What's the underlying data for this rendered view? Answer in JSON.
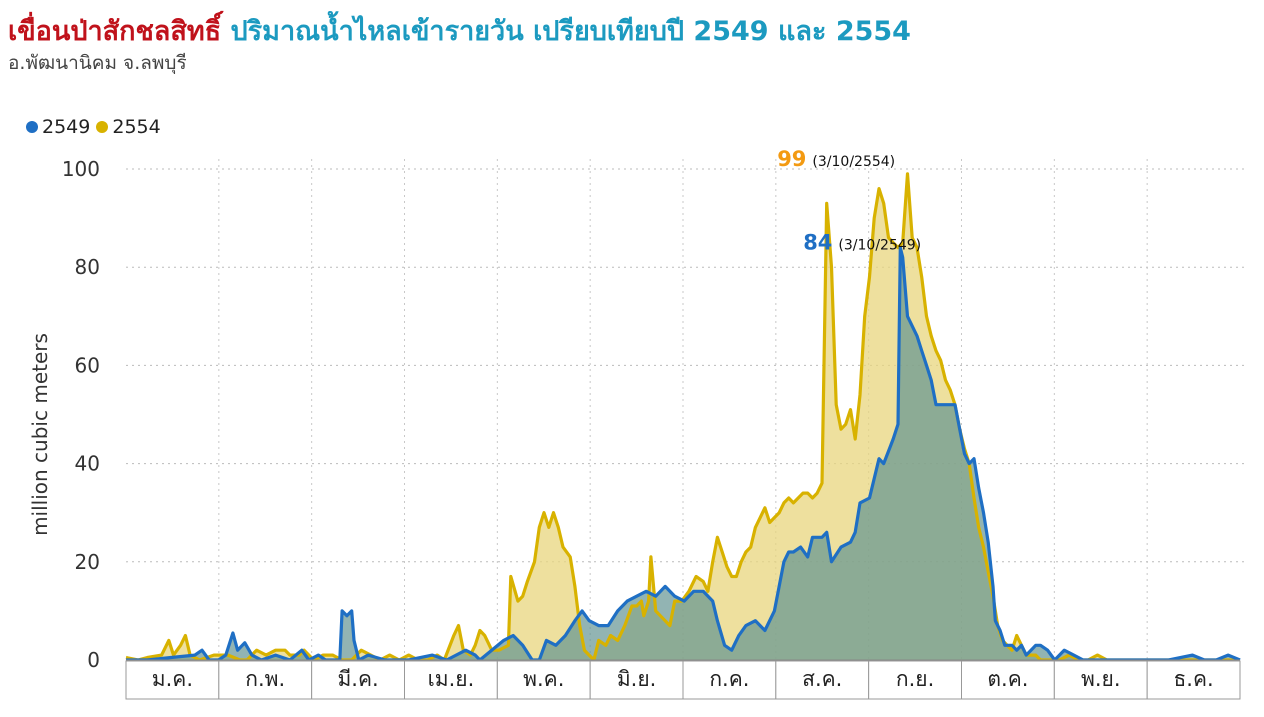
{
  "header": {
    "title_main": "เขื่อนป่าสักชลสิทธิ์",
    "title_rest": "ปริมาณน้ำไหลเข้ารายวัน เปรียบเทียบปี 2549 และ 2554",
    "subtitle": "อ.พัฒนานิคม จ.ลพบุรี"
  },
  "colors": {
    "s2549": "#1f6fc4",
    "s2554": "#d8b200",
    "title_red": "#c0121b",
    "title_blue": "#1c9ac0"
  },
  "chart_data": {
    "type": "area",
    "ylabel": "million cubic meters",
    "ylim": [
      0,
      100
    ],
    "yticks": [
      0,
      20,
      40,
      60,
      80,
      100
    ],
    "categories": [
      "ม.ค.",
      "ก.พ.",
      "มี.ค.",
      "เม.ย.",
      "พ.ค.",
      "มิ.ย.",
      "ก.ค.",
      "ส.ค.",
      "ก.ย.",
      "ต.ค.",
      "พ.ย.",
      "ธ.ค."
    ],
    "x_unit": "day of year",
    "legend_position": "top-left",
    "grid": true,
    "annotations": [
      {
        "series": "2554",
        "value": "99",
        "date": "(3/10/2554)",
        "x": 276,
        "y": 99
      },
      {
        "series": "2549",
        "value": "84",
        "date": "(3/10/2549)",
        "x": 276,
        "y": 84
      }
    ],
    "series": [
      {
        "name": "2549",
        "points": [
          [
            1,
            0
          ],
          [
            10,
            0
          ],
          [
            20,
            0.5
          ],
          [
            30,
            1
          ],
          [
            33,
            2
          ],
          [
            36,
            0
          ],
          [
            40,
            0
          ],
          [
            43,
            1
          ],
          [
            46,
            5.5
          ],
          [
            48,
            2
          ],
          [
            51,
            3.5
          ],
          [
            54,
            1
          ],
          [
            58,
            0
          ],
          [
            64,
            1
          ],
          [
            70,
            0
          ],
          [
            75,
            2
          ],
          [
            78,
            0
          ],
          [
            82,
            1
          ],
          [
            85,
            0
          ],
          [
            88,
            0
          ],
          [
            91,
            0
          ],
          [
            92,
            10
          ],
          [
            94,
            9
          ],
          [
            96,
            10
          ],
          [
            97,
            4
          ],
          [
            99,
            0
          ],
          [
            103,
            1
          ],
          [
            110,
            0
          ],
          [
            120,
            0
          ],
          [
            130,
            1
          ],
          [
            136,
            0
          ],
          [
            144,
            2
          ],
          [
            148,
            1
          ],
          [
            150,
            0
          ],
          [
            160,
            4
          ],
          [
            164,
            5
          ],
          [
            168,
            3
          ],
          [
            172,
            0
          ],
          [
            175,
            0
          ],
          [
            178,
            4
          ],
          [
            182,
            3
          ],
          [
            186,
            5
          ],
          [
            190,
            8
          ],
          [
            193,
            10
          ],
          [
            196,
            8
          ],
          [
            200,
            7
          ],
          [
            204,
            7
          ],
          [
            208,
            10
          ],
          [
            212,
            12
          ],
          [
            216,
            13
          ],
          [
            220,
            14
          ],
          [
            224,
            13
          ],
          [
            228,
            15
          ],
          [
            232,
            13
          ],
          [
            236,
            12
          ],
          [
            240,
            14
          ],
          [
            244,
            14
          ],
          [
            248,
            12
          ],
          [
            250,
            8
          ],
          [
            253,
            3
          ],
          [
            256,
            2
          ],
          [
            259,
            5
          ],
          [
            262,
            7
          ],
          [
            266,
            8
          ],
          [
            270,
            6
          ],
          [
            274,
            10
          ],
          [
            278,
            20
          ],
          [
            280,
            22
          ],
          [
            282,
            22
          ],
          [
            285,
            23
          ],
          [
            288,
            21
          ],
          [
            290,
            25
          ],
          [
            294,
            25
          ],
          [
            296,
            26
          ],
          [
            298,
            20
          ],
          [
            302,
            23
          ],
          [
            306,
            24
          ],
          [
            308,
            26
          ],
          [
            310,
            32
          ],
          [
            314,
            33
          ],
          [
            318,
            41
          ],
          [
            320,
            40
          ],
          [
            324,
            45
          ],
          [
            326,
            48
          ],
          [
            327,
            84
          ],
          [
            328,
            82
          ],
          [
            330,
            70
          ],
          [
            334,
            66
          ],
          [
            336,
            63
          ],
          [
            338,
            60
          ],
          [
            340,
            57
          ],
          [
            342,
            52
          ],
          [
            346,
            52
          ],
          [
            350,
            52
          ],
          [
            352,
            47
          ],
          [
            354,
            42
          ],
          [
            356,
            40
          ],
          [
            358,
            41
          ],
          [
            360,
            35
          ],
          [
            362,
            30
          ],
          [
            364,
            24
          ],
          [
            366,
            15
          ],
          [
            367,
            8
          ],
          [
            369,
            6
          ],
          [
            371,
            3
          ],
          [
            374,
            3
          ],
          [
            376,
            2
          ],
          [
            378,
            3
          ],
          [
            380,
            1
          ],
          [
            382,
            2
          ],
          [
            384,
            3
          ],
          [
            386,
            3
          ],
          [
            389,
            2
          ],
          [
            392,
            0
          ],
          [
            396,
            2
          ],
          [
            400,
            1
          ],
          [
            404,
            0
          ],
          [
            410,
            0
          ],
          [
            420,
            0
          ],
          [
            430,
            0
          ],
          [
            440,
            0
          ],
          [
            450,
            1
          ],
          [
            455,
            0
          ],
          [
            460,
            0
          ],
          [
            465,
            1
          ],
          [
            470,
            0
          ]
        ]
      },
      {
        "name": "2554",
        "points": [
          [
            1,
            0.5
          ],
          [
            6,
            0
          ],
          [
            10,
            0.5
          ],
          [
            16,
            1
          ],
          [
            19,
            4
          ],
          [
            21,
            1
          ],
          [
            24,
            3
          ],
          [
            26,
            5
          ],
          [
            28,
            1
          ],
          [
            32,
            0
          ],
          [
            38,
            1
          ],
          [
            44,
            1
          ],
          [
            49,
            0
          ],
          [
            52,
            0
          ],
          [
            56,
            2
          ],
          [
            60,
            1
          ],
          [
            64,
            2
          ],
          [
            68,
            2
          ],
          [
            70,
            1
          ],
          [
            74,
            1
          ],
          [
            76,
            2
          ],
          [
            80,
            0
          ],
          [
            84,
            1
          ],
          [
            88,
            1
          ],
          [
            92,
            0
          ],
          [
            96,
            0
          ],
          [
            100,
            2
          ],
          [
            104,
            1
          ],
          [
            108,
            0
          ],
          [
            112,
            1
          ],
          [
            116,
            0
          ],
          [
            120,
            1
          ],
          [
            124,
            0
          ],
          [
            128,
            0
          ],
          [
            132,
            1
          ],
          [
            135,
            0
          ],
          [
            139,
            5
          ],
          [
            141,
            7
          ],
          [
            143,
            2
          ],
          [
            146,
            1
          ],
          [
            148,
            3
          ],
          [
            150,
            6
          ],
          [
            152,
            5
          ],
          [
            155,
            2
          ],
          [
            158,
            2
          ],
          [
            162,
            3
          ],
          [
            163,
            17
          ],
          [
            166,
            12
          ],
          [
            168,
            13
          ],
          [
            170,
            16
          ],
          [
            173,
            20
          ],
          [
            175,
            27
          ],
          [
            177,
            30
          ],
          [
            179,
            27
          ],
          [
            181,
            30
          ],
          [
            183,
            27
          ],
          [
            185,
            23
          ],
          [
            188,
            21
          ],
          [
            190,
            15
          ],
          [
            192,
            7
          ],
          [
            194,
            2
          ],
          [
            198,
            0
          ],
          [
            200,
            4
          ],
          [
            203,
            3
          ],
          [
            205,
            5
          ],
          [
            208,
            4
          ],
          [
            211,
            7
          ],
          [
            214,
            11
          ],
          [
            216,
            11
          ],
          [
            218,
            12
          ],
          [
            219,
            9
          ],
          [
            221,
            12
          ],
          [
            222,
            21
          ],
          [
            224,
            10
          ],
          [
            226,
            9
          ],
          [
            230,
            7
          ],
          [
            232,
            12
          ],
          [
            235,
            12
          ],
          [
            238,
            14
          ],
          [
            241,
            17
          ],
          [
            244,
            16
          ],
          [
            246,
            14
          ],
          [
            248,
            20
          ],
          [
            250,
            25
          ],
          [
            252,
            22
          ],
          [
            254,
            19
          ],
          [
            256,
            17
          ],
          [
            258,
            17
          ],
          [
            260,
            20
          ],
          [
            262,
            22
          ],
          [
            264,
            23
          ],
          [
            266,
            27
          ],
          [
            268,
            29
          ],
          [
            270,
            31
          ],
          [
            272,
            28
          ],
          [
            274,
            29
          ],
          [
            276,
            30
          ],
          [
            278,
            32
          ],
          [
            280,
            33
          ],
          [
            282,
            32
          ],
          [
            284,
            33
          ],
          [
            286,
            34
          ],
          [
            288,
            34
          ],
          [
            290,
            33
          ],
          [
            292,
            34
          ],
          [
            294,
            36
          ],
          [
            296,
            93
          ],
          [
            298,
            80
          ],
          [
            300,
            52
          ],
          [
            302,
            47
          ],
          [
            304,
            48
          ],
          [
            306,
            51
          ],
          [
            308,
            45
          ],
          [
            310,
            54
          ],
          [
            312,
            70
          ],
          [
            314,
            78
          ],
          [
            316,
            90
          ],
          [
            318,
            96
          ],
          [
            320,
            93
          ],
          [
            322,
            86
          ],
          [
            324,
            85
          ],
          [
            326,
            84
          ],
          [
            328,
            85
          ],
          [
            330,
            99
          ],
          [
            332,
            86
          ],
          [
            334,
            84
          ],
          [
            336,
            78
          ],
          [
            338,
            70
          ],
          [
            340,
            66
          ],
          [
            342,
            63
          ],
          [
            344,
            61
          ],
          [
            346,
            57
          ],
          [
            348,
            55
          ],
          [
            350,
            52
          ],
          [
            352,
            47
          ],
          [
            354,
            43
          ],
          [
            356,
            40
          ],
          [
            358,
            33
          ],
          [
            360,
            27
          ],
          [
            362,
            23
          ],
          [
            364,
            18
          ],
          [
            366,
            13
          ],
          [
            368,
            7
          ],
          [
            370,
            4
          ],
          [
            372,
            3
          ],
          [
            374,
            2
          ],
          [
            376,
            5
          ],
          [
            378,
            3
          ],
          [
            380,
            1
          ],
          [
            382,
            1
          ],
          [
            384,
            1
          ],
          [
            386,
            0
          ],
          [
            390,
            0
          ],
          [
            394,
            0
          ],
          [
            398,
            1
          ],
          [
            402,
            0
          ],
          [
            406,
            0
          ],
          [
            410,
            1
          ],
          [
            414,
            0
          ],
          [
            418,
            0
          ],
          [
            424,
            0
          ],
          [
            430,
            0
          ],
          [
            440,
            0
          ],
          [
            450,
            0
          ],
          [
            460,
            0
          ],
          [
            470,
            0
          ]
        ]
      }
    ]
  }
}
